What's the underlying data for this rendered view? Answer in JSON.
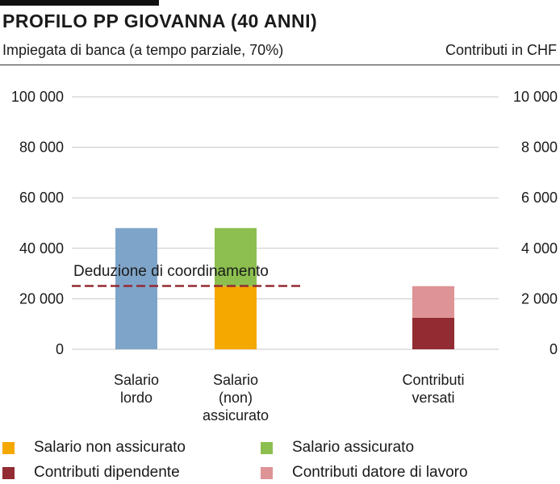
{
  "header": {
    "title": "PROFILO PP GIOVANNA (40 ANNI)",
    "subtitle": "Impiegata di banca (a tempo parziale, 70%)",
    "unit": "Contributi in CHF"
  },
  "colors": {
    "salario_lordo": "#7fa4c9",
    "non_assicurato": "#f5a800",
    "assicurato": "#8cbf4f",
    "dipendente": "#932b32",
    "datore": "#de9396",
    "deduzione": "#932b32",
    "grid": "#c8c8c8"
  },
  "chart_data": {
    "type": "bar",
    "left_axis": {
      "ylim": [
        0,
        100000
      ],
      "ticks": [
        0,
        20000,
        40000,
        60000,
        80000,
        100000
      ],
      "tick_labels": [
        "0",
        "20 000",
        "40 000",
        "60 000",
        "80 000",
        "100 000"
      ]
    },
    "right_axis": {
      "ylim": [
        0,
        10000
      ],
      "ticks": [
        0,
        2000,
        4000,
        6000,
        8000,
        10000
      ],
      "tick_labels": [
        "0",
        "2 000",
        "4 000",
        "6 000",
        "8 000",
        "10 000"
      ]
    },
    "grid": true,
    "categories": [
      {
        "label_lines": [
          "Salario",
          "lordo"
        ],
        "axis": "left",
        "segments": [
          {
            "series": "Salario lordo",
            "value": 48000,
            "color_key": "salario_lordo"
          }
        ]
      },
      {
        "label_lines": [
          "Salario",
          "(non)",
          "assicurato"
        ],
        "axis": "left",
        "segments": [
          {
            "series": "Salario non assicurato",
            "value": 25000,
            "color_key": "non_assicurato"
          },
          {
            "series": "Salario assicurato",
            "value": 23000,
            "color_key": "assicurato"
          }
        ]
      },
      {
        "label_lines": [
          "Contributi",
          "versati"
        ],
        "axis": "right",
        "segments": [
          {
            "series": "Contributi dipendente",
            "value": 1250,
            "color_key": "dipendente"
          },
          {
            "series": "Contributi datore di lavoro",
            "value": 1250,
            "color_key": "datore"
          }
        ]
      }
    ],
    "reference_line": {
      "label": "Deduzione di coordinamento",
      "value": 25095,
      "axis": "left",
      "style": "dashed"
    },
    "legend": [
      {
        "label": "Salario non assicurato",
        "color_key": "non_assicurato"
      },
      {
        "label": "Salario assicurato",
        "color_key": "assicurato"
      },
      {
        "label": "Contributi dipendente",
        "color_key": "dipendente"
      },
      {
        "label": "Contributi datore di lavoro",
        "color_key": "datore"
      }
    ],
    "legend_position": "bottom"
  }
}
